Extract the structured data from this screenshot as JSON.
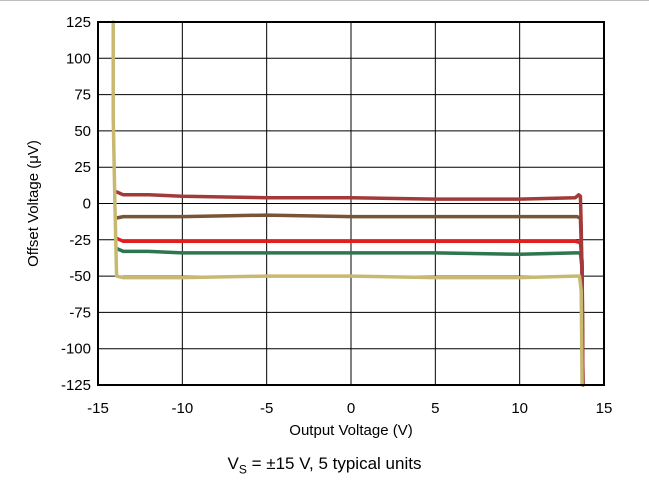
{
  "chart_data": {
    "type": "line",
    "xlabel": "Output Voltage (V)",
    "ylabel": "Offset Voltage (μV)",
    "xlim": [
      -15,
      15
    ],
    "ylim": [
      -125,
      125
    ],
    "x_ticks": [
      -15,
      -10,
      -5,
      0,
      5,
      10,
      15
    ],
    "y_ticks": [
      125,
      100,
      75,
      50,
      25,
      0,
      -25,
      -50,
      -75,
      -100,
      -125
    ],
    "x_tick_labels": [
      "-15",
      "-10",
      "-5",
      "0",
      "5",
      "10",
      "15"
    ],
    "y_tick_labels": [
      "125",
      "100",
      "75",
      "50",
      "25",
      "0",
      "-25",
      "-50",
      "-75",
      "-100",
      "-125"
    ],
    "grid": true,
    "legend": "none",
    "caption": {
      "main": "V",
      "sub": "S",
      "rest": " = ±15 V, 5 typical units"
    },
    "series": [
      {
        "color": "#2e7550",
        "points": [
          [
            -13.9,
            -31
          ],
          [
            -13.5,
            -33
          ],
          [
            -12,
            -33
          ],
          [
            -10,
            -34
          ],
          [
            -5,
            -34
          ],
          [
            0,
            -34
          ],
          [
            5,
            -34
          ],
          [
            10,
            -35
          ],
          [
            13.3,
            -34
          ],
          [
            13.6,
            -34
          ],
          [
            13.7,
            -45
          ],
          [
            13.75,
            -125
          ]
        ]
      },
      {
        "color": "#e02020",
        "points": [
          [
            -13.9,
            -24
          ],
          [
            -13.5,
            -26
          ],
          [
            -12,
            -26
          ],
          [
            -10,
            -26
          ],
          [
            -5,
            -26
          ],
          [
            0,
            -26
          ],
          [
            5,
            -26
          ],
          [
            10,
            -26
          ],
          [
            13.3,
            -26
          ],
          [
            13.6,
            -27
          ],
          [
            13.7,
            -40
          ],
          [
            13.75,
            -125
          ]
        ]
      },
      {
        "color": "#7a5535",
        "points": [
          [
            -13.9,
            -10
          ],
          [
            -13.5,
            -9
          ],
          [
            -12,
            -9
          ],
          [
            -10,
            -9
          ],
          [
            -5,
            -8
          ],
          [
            0,
            -9
          ],
          [
            5,
            -9
          ],
          [
            10,
            -9
          ],
          [
            13.4,
            -9
          ],
          [
            13.6,
            -10
          ],
          [
            13.7,
            -45
          ],
          [
            13.75,
            -125
          ]
        ]
      },
      {
        "color": "#a33a3a",
        "points": [
          [
            -13.9,
            8
          ],
          [
            -13.5,
            6
          ],
          [
            -12,
            6
          ],
          [
            -10,
            5
          ],
          [
            -5,
            4
          ],
          [
            0,
            4
          ],
          [
            5,
            3
          ],
          [
            10,
            3
          ],
          [
            13.3,
            4
          ],
          [
            13.5,
            6
          ],
          [
            13.6,
            5
          ],
          [
            13.65,
            -15
          ],
          [
            13.7,
            -60
          ],
          [
            13.75,
            -125
          ]
        ]
      },
      {
        "color": "#c8b870",
        "points": [
          [
            -14.1,
            125
          ],
          [
            -14.1,
            60
          ],
          [
            -14.0,
            0
          ],
          [
            -13.9,
            -50
          ],
          [
            -13.5,
            -51
          ],
          [
            -12,
            -51
          ],
          [
            -10,
            -51
          ],
          [
            -5,
            -50
          ],
          [
            0,
            -50
          ],
          [
            5,
            -51
          ],
          [
            10,
            -51
          ],
          [
            13.3,
            -50
          ],
          [
            13.55,
            -50
          ],
          [
            13.65,
            -60
          ],
          [
            13.7,
            -125
          ]
        ]
      }
    ]
  }
}
